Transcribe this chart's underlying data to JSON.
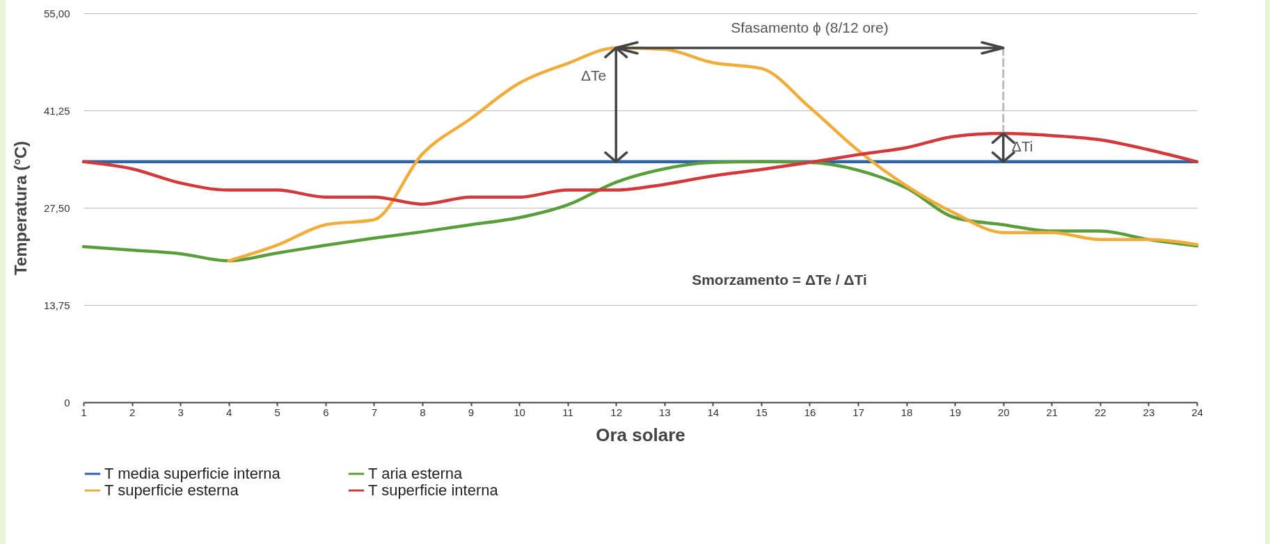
{
  "chart_data": {
    "type": "line",
    "xlabel": "Ora solare",
    "ylabel": "Temperatura (°C)",
    "x": [
      1,
      2,
      3,
      4,
      5,
      6,
      7,
      8,
      9,
      10,
      11,
      12,
      13,
      14,
      15,
      16,
      17,
      18,
      19,
      20,
      21,
      22,
      23,
      24
    ],
    "xlim": [
      1,
      24
    ],
    "xticks": [
      1,
      2,
      3,
      4,
      5,
      6,
      7,
      8,
      9,
      10,
      11,
      12,
      13,
      14,
      15,
      16,
      17,
      18,
      19,
      20,
      21,
      22,
      23,
      24
    ],
    "ylim": [
      0,
      55
    ],
    "yticks": [
      0,
      {
        "value": 13.75,
        "label": "13,75"
      },
      {
        "value": 27.5,
        "label": "27,50"
      },
      {
        "value": 41.25,
        "label": "41,25"
      },
      {
        "value": 55,
        "label": "55,00"
      }
    ],
    "grid": "y",
    "legend": "bottom",
    "marker": "none",
    "line_style": "solid",
    "series": [
      {
        "name": "T media superficie interna",
        "color": "#2e64a8",
        "values": [
          34,
          34,
          34,
          34,
          34,
          34,
          34,
          34,
          34,
          34,
          34,
          34,
          34,
          34,
          34,
          34,
          34,
          34,
          34,
          34,
          34,
          34,
          34,
          34
        ]
      },
      {
        "name": "T aria esterna",
        "color": "#5a9e3c",
        "values": [
          22,
          21.5,
          21,
          20,
          21.1,
          22.2,
          23.2,
          24.1,
          25.1,
          26.1,
          27.9,
          31.1,
          33,
          33.9,
          34,
          33.9,
          32.8,
          30.3,
          26.1,
          25.1,
          24.2,
          24.2,
          23,
          22.1
        ]
      },
      {
        "name": "T superficie esterna",
        "color": "#f0ad3c",
        "values": [
          null,
          null,
          null,
          20,
          22.2,
          25.1,
          25.8,
          35.1,
          40.1,
          45.1,
          47.9,
          50.1,
          49.9,
          48,
          47.2,
          41.7,
          35.6,
          30.6,
          26.7,
          24,
          24,
          23,
          23,
          22.3
        ]
      },
      {
        "name": "T superficie interna",
        "color": "#d1393a",
        "values": [
          34,
          33,
          31,
          30,
          30,
          29,
          29,
          28,
          29,
          29,
          30,
          30,
          30.8,
          32,
          32.9,
          33.9,
          35,
          36,
          37.6,
          38,
          37.7,
          37.1,
          35.7,
          34
        ]
      }
    ],
    "annotations": [
      "Sfasamento ϕ (8/12 ore)",
      "ΔTe",
      "ΔTi",
      "Smorzamento = ΔTe / ΔTi"
    ]
  }
}
